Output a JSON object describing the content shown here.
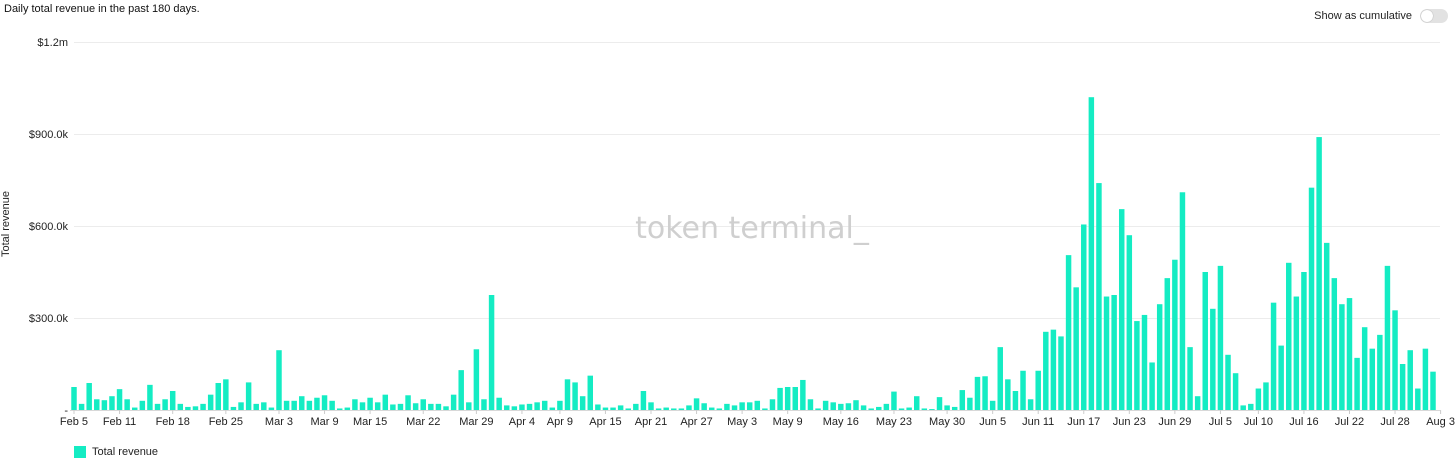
{
  "header": {
    "subtitle": "Daily total revenue in the past 180 days.",
    "toggle_label": "Show as cumulative",
    "toggle_on": false
  },
  "watermark": "token terminal_",
  "colors": {
    "bar": "#14ecc3",
    "grid": "#ececec",
    "watermark": "#cfcfcf"
  },
  "chart_data": {
    "type": "bar",
    "ylabel": "Total revenue",
    "ylim": [
      0,
      1200000
    ],
    "y_ticks": [
      {
        "value": 300000,
        "label": "$300.0k"
      },
      {
        "value": 600000,
        "label": "$600.0k"
      },
      {
        "value": 900000,
        "label": "$900.0k"
      },
      {
        "value": 1200000,
        "label": "$1.2m"
      }
    ],
    "x_tick_labels": [
      {
        "index": 0,
        "label": "Feb 5"
      },
      {
        "index": 6,
        "label": "Feb 11"
      },
      {
        "index": 13,
        "label": "Feb 18"
      },
      {
        "index": 20,
        "label": "Feb 25"
      },
      {
        "index": 27,
        "label": "Mar 3"
      },
      {
        "index": 33,
        "label": "Mar 9"
      },
      {
        "index": 39,
        "label": "Mar 15"
      },
      {
        "index": 46,
        "label": "Mar 22"
      },
      {
        "index": 53,
        "label": "Mar 29"
      },
      {
        "index": 59,
        "label": "Apr 4"
      },
      {
        "index": 64,
        "label": "Apr 9"
      },
      {
        "index": 70,
        "label": "Apr 15"
      },
      {
        "index": 76,
        "label": "Apr 21"
      },
      {
        "index": 82,
        "label": "Apr 27"
      },
      {
        "index": 88,
        "label": "May 3"
      },
      {
        "index": 94,
        "label": "May 9"
      },
      {
        "index": 101,
        "label": "May 16"
      },
      {
        "index": 108,
        "label": "May 23"
      },
      {
        "index": 115,
        "label": "May 30"
      },
      {
        "index": 121,
        "label": "Jun 5"
      },
      {
        "index": 127,
        "label": "Jun 11"
      },
      {
        "index": 133,
        "label": "Jun 17"
      },
      {
        "index": 139,
        "label": "Jun 23"
      },
      {
        "index": 145,
        "label": "Jun 29"
      },
      {
        "index": 151,
        "label": "Jul 5"
      },
      {
        "index": 156,
        "label": "Jul 10"
      },
      {
        "index": 162,
        "label": "Jul 16"
      },
      {
        "index": 168,
        "label": "Jul 22"
      },
      {
        "index": 174,
        "label": "Jul 28"
      },
      {
        "index": 180,
        "label": "Aug 3"
      }
    ],
    "series": [
      {
        "name": "Total revenue",
        "values": [
          75000,
          20000,
          88000,
          35000,
          32000,
          45000,
          68000,
          35000,
          8000,
          30000,
          82000,
          20000,
          35000,
          62000,
          20000,
          10000,
          12000,
          20000,
          50000,
          88000,
          100000,
          10000,
          25000,
          90000,
          20000,
          25000,
          8000,
          195000,
          30000,
          30000,
          45000,
          30000,
          40000,
          48000,
          30000,
          5000,
          8000,
          35000,
          25000,
          40000,
          25000,
          50000,
          18000,
          20000,
          48000,
          22000,
          35000,
          20000,
          20000,
          12000,
          50000,
          130000,
          25000,
          198000,
          35000,
          375000,
          40000,
          15000,
          12000,
          18000,
          20000,
          25000,
          30000,
          8000,
          30000,
          100000,
          90000,
          45000,
          112000,
          18000,
          8000,
          8000,
          15000,
          5000,
          20000,
          62000,
          25000,
          5000,
          8000,
          5000,
          5000,
          15000,
          38000,
          22000,
          8000,
          5000,
          20000,
          15000,
          25000,
          25000,
          30000,
          5000,
          35000,
          72000,
          75000,
          75000,
          98000,
          35000,
          5000,
          30000,
          25000,
          20000,
          22000,
          32000,
          15000,
          5000,
          10000,
          20000,
          60000,
          5000,
          8000,
          45000,
          5000,
          3000,
          42000,
          15000,
          10000,
          65000,
          40000,
          108000,
          110000,
          30000,
          205000,
          100000,
          62000,
          128000,
          35000,
          128000,
          255000,
          262000,
          240000,
          505000,
          400000,
          605000,
          1020000,
          740000,
          370000,
          375000,
          655000,
          570000,
          290000,
          310000,
          155000,
          345000,
          430000,
          490000,
          710000,
          205000,
          45000,
          450000,
          330000,
          470000,
          180000,
          120000,
          15000,
          20000,
          70000,
          90000,
          350000,
          210000,
          480000,
          370000,
          450000,
          725000,
          890000,
          545000,
          430000,
          345000,
          365000,
          170000,
          270000,
          200000,
          245000,
          470000,
          325000,
          150000,
          195000,
          70000,
          200000,
          125000
        ]
      }
    ],
    "grid": true,
    "legend": "bottom-left"
  }
}
